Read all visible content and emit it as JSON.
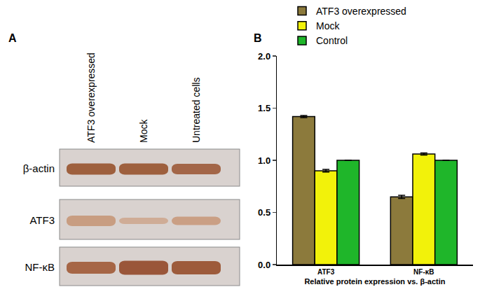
{
  "panel_labels": [
    "A",
    "B"
  ],
  "blot": {
    "lanes": [
      "ATF3 overexpressed",
      "Mock",
      "Untreated cells"
    ],
    "rows": [
      "β-actin",
      "ATF3",
      "NF-κB"
    ]
  },
  "chart_data": {
    "type": "bar",
    "categories": [
      "ATF3",
      "NF-κB"
    ],
    "series": [
      {
        "name": "ATF3 overexpressed",
        "color": "#8c7a3c",
        "values": [
          1.42,
          0.65
        ],
        "errors": [
          0.01,
          0.015
        ]
      },
      {
        "name": "Mock",
        "color": "#f2f20a",
        "values": [
          0.9,
          1.06
        ],
        "errors": [
          0.012,
          0.01
        ]
      },
      {
        "name": "Control",
        "color": "#1fb62a",
        "values": [
          1.0,
          1.0
        ],
        "errors": [
          0.0,
          0.0
        ]
      }
    ],
    "x_label": "Relative protein expression vs. β-actin",
    "ylim": [
      0,
      2.0
    ],
    "yticks": [
      {
        "value": 0,
        "label": "0.0"
      },
      {
        "value": 0.5,
        "label": "0.5"
      },
      {
        "value": 1.0,
        "label": "1.0"
      },
      {
        "value": 1.5,
        "label": "1.5"
      },
      {
        "value": 2.0,
        "label": "2.0"
      }
    ],
    "grid": false,
    "legend": "top"
  }
}
